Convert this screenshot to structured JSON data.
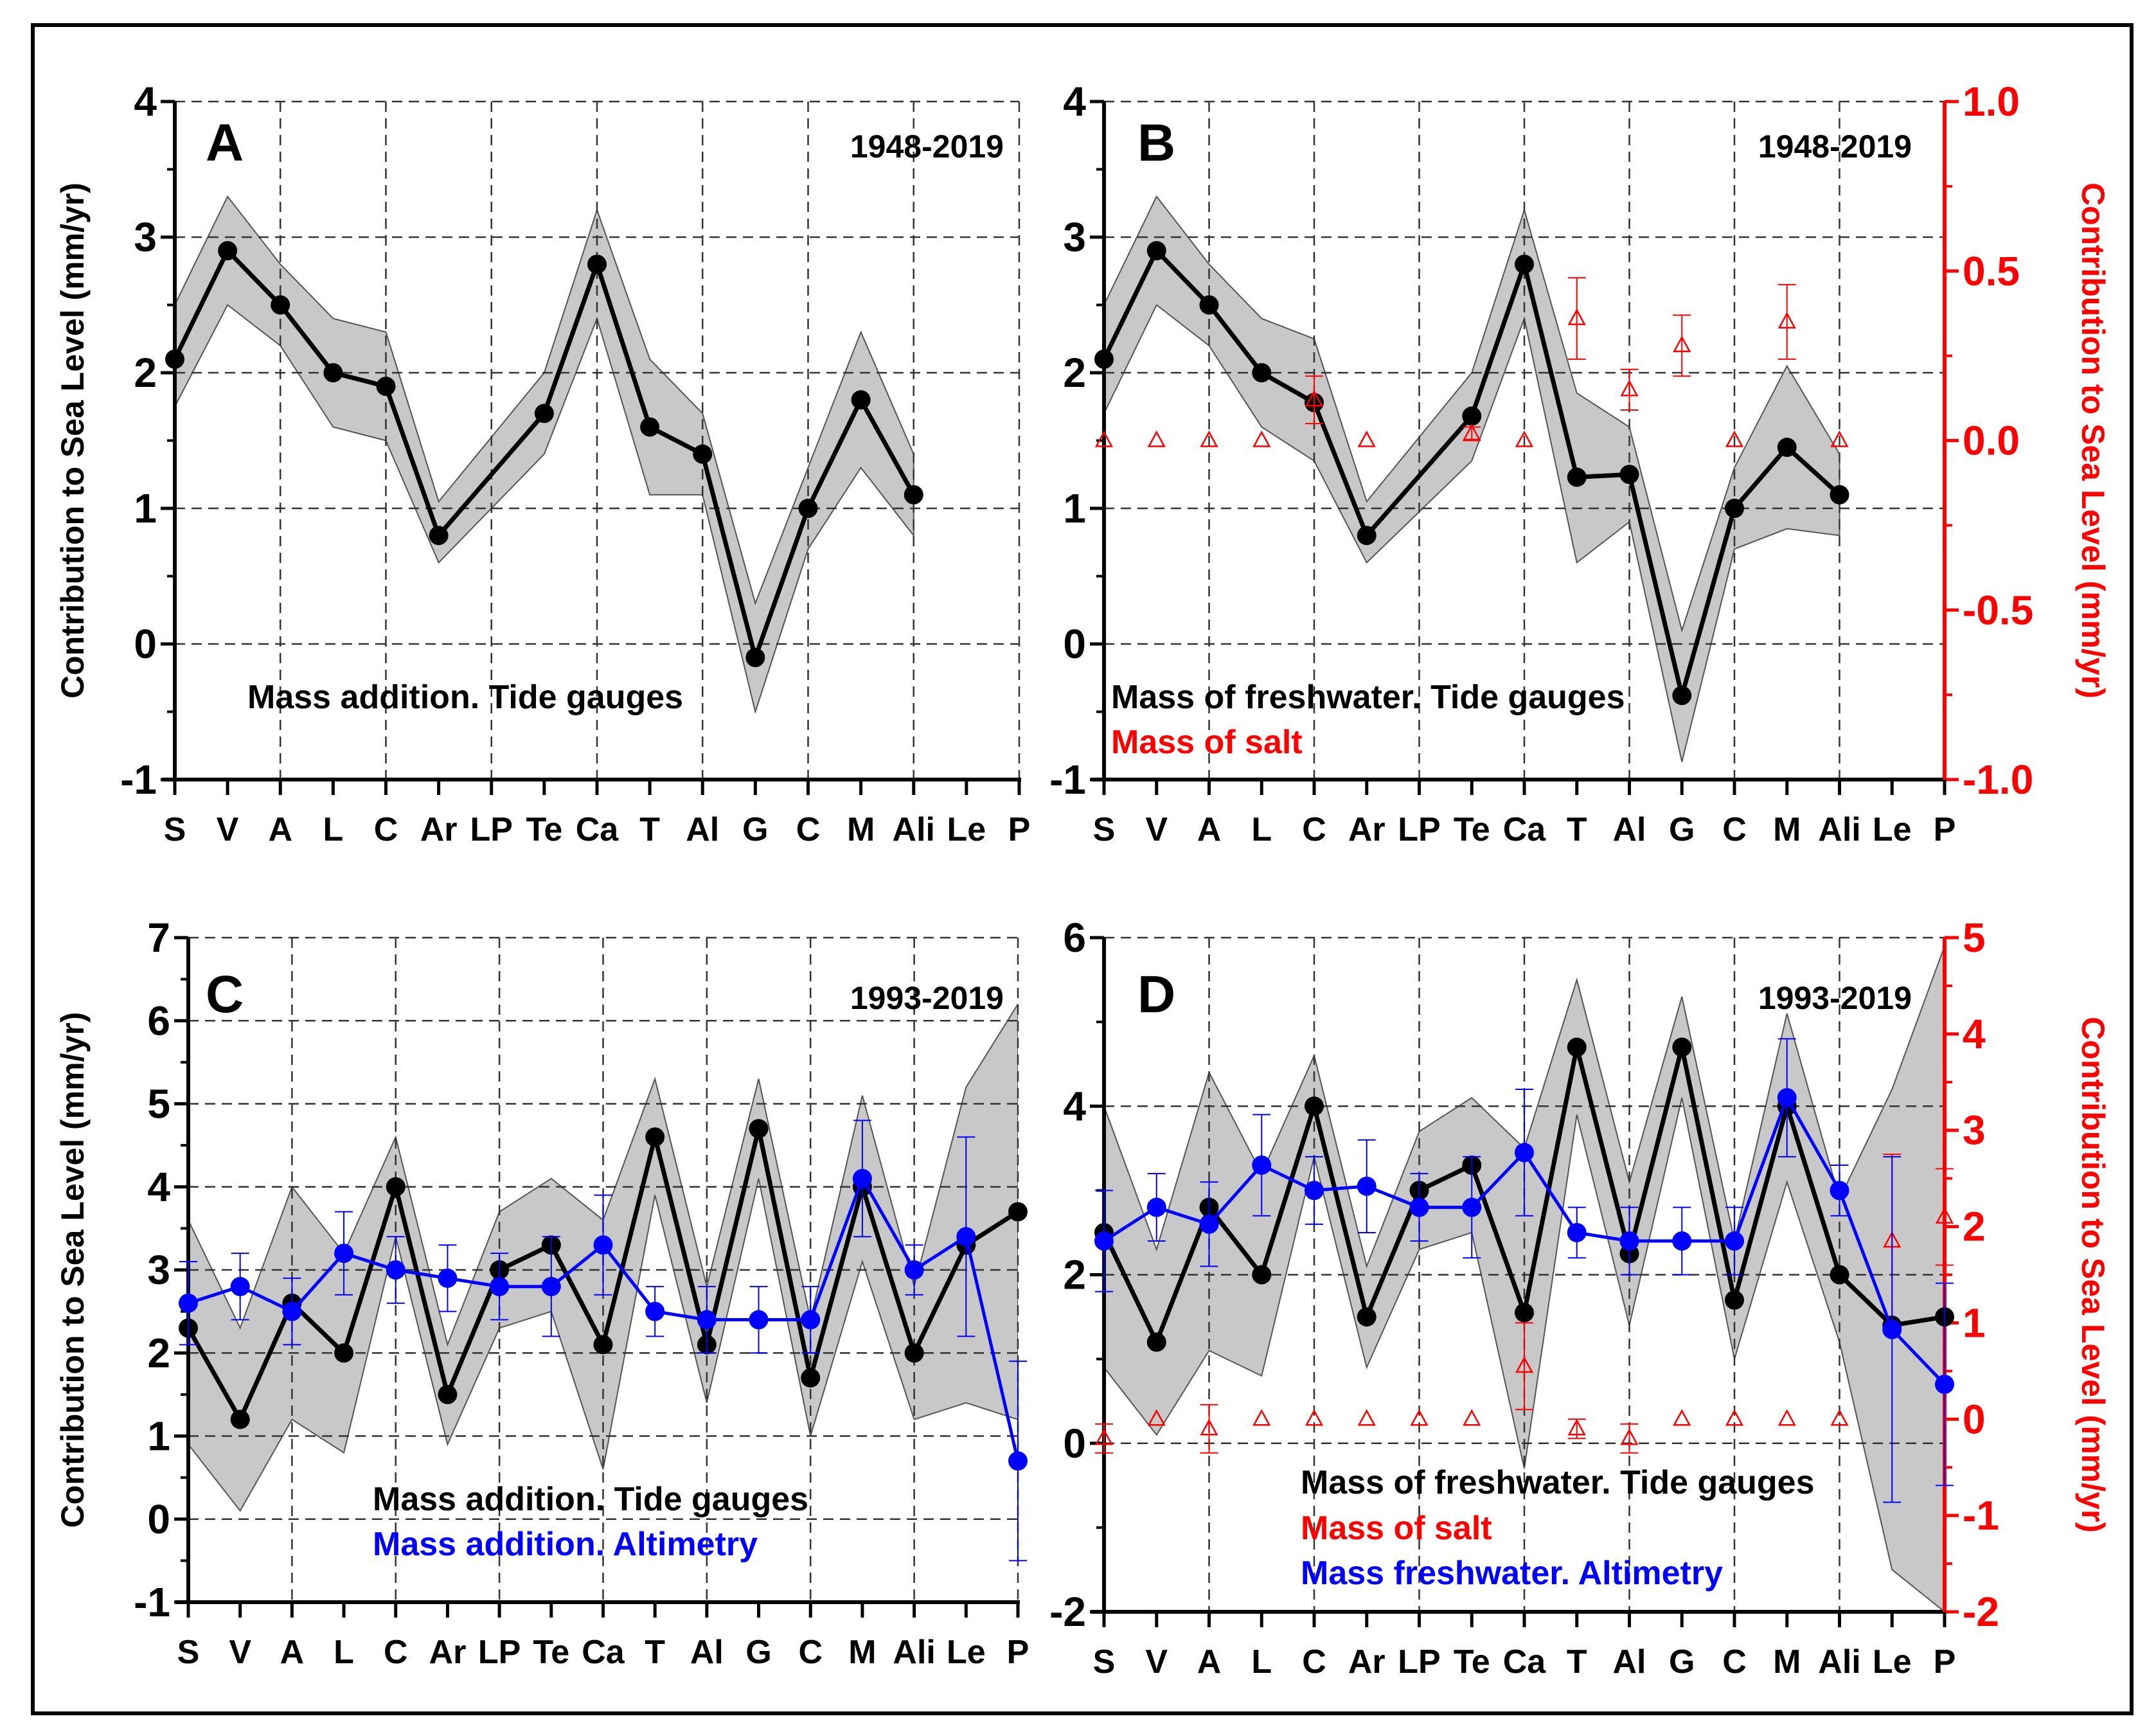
{
  "chart_data": [
    {
      "type": "line",
      "panel": "A",
      "period": "1948-2019",
      "ylabel": "Contribution to Sea Level (mm/yr)",
      "ylim": [
        -1,
        4
      ],
      "yticks": [
        "-1",
        "0",
        "1",
        "2",
        "3",
        "4"
      ],
      "categories": [
        "S",
        "V",
        "A",
        "L",
        "C",
        "Ar",
        "LP",
        "Te",
        "Ca",
        "T",
        "Al",
        "G",
        "C",
        "M",
        "Ali",
        "Le",
        "P"
      ],
      "series": [
        {
          "name": "Mass addition. Tide gauges",
          "color": "#000000",
          "style": "line-band",
          "values": [
            2.1,
            2.9,
            2.5,
            2.0,
            1.9,
            0.8,
            null,
            1.7,
            2.8,
            1.6,
            1.4,
            -0.1,
            1.0,
            1.8,
            1.1,
            null,
            null
          ],
          "lower": [
            1.75,
            2.5,
            2.2,
            1.6,
            1.5,
            0.6,
            null,
            1.4,
            2.4,
            1.1,
            1.1,
            -0.5,
            0.7,
            1.3,
            0.8,
            null,
            null
          ],
          "upper": [
            2.5,
            3.3,
            2.8,
            2.4,
            2.3,
            1.05,
            null,
            2.0,
            3.2,
            2.1,
            1.7,
            0.3,
            1.3,
            2.3,
            1.4,
            null,
            null
          ]
        }
      ]
    },
    {
      "type": "line",
      "panel": "B",
      "period": "1948-2019",
      "ylabel": "",
      "ylabel_right": "Contribution to Sea Level (mm/yr)",
      "ylim": [
        -1,
        4
      ],
      "yticks": [
        "-1",
        "0",
        "1",
        "2",
        "3",
        "4"
      ],
      "ylim_right": [
        -1,
        1
      ],
      "yticks_right": [
        "-1.0",
        "-0.5",
        "0.0",
        "0.5",
        "1.0"
      ],
      "categories": [
        "S",
        "V",
        "A",
        "L",
        "C",
        "Ar",
        "LP",
        "Te",
        "Ca",
        "T",
        "Al",
        "G",
        "C",
        "M",
        "Ali",
        "Le",
        "P"
      ],
      "series": [
        {
          "name": "Mass of freshwater. Tide gauges",
          "color": "#000000",
          "style": "line-band",
          "values": [
            2.1,
            2.9,
            2.5,
            2.0,
            1.78,
            0.8,
            null,
            1.68,
            2.8,
            1.23,
            1.25,
            -0.38,
            1.0,
            1.45,
            1.1,
            null,
            null
          ],
          "lower": [
            1.7,
            2.5,
            2.2,
            1.6,
            1.35,
            0.6,
            null,
            1.35,
            2.4,
            0.6,
            0.9,
            -0.87,
            0.7,
            0.85,
            0.8,
            null,
            null
          ],
          "upper": [
            2.5,
            3.3,
            2.8,
            2.4,
            2.25,
            1.05,
            null,
            2.0,
            3.2,
            1.85,
            1.6,
            0.1,
            1.3,
            2.05,
            1.4,
            null,
            null
          ]
        },
        {
          "name": "Mass of salt",
          "color": "#ff0000",
          "style": "triangle-err",
          "axis": "right",
          "values": [
            0,
            0,
            0,
            0,
            0.12,
            0,
            null,
            0.02,
            0,
            0.36,
            0.15,
            0.28,
            0,
            0.35,
            0,
            null,
            null
          ],
          "err": [
            0,
            0,
            0,
            0,
            0.07,
            0,
            null,
            0.02,
            0,
            0.12,
            0.06,
            0.09,
            0,
            0.11,
            0,
            null,
            null
          ]
        }
      ]
    },
    {
      "type": "line",
      "panel": "C",
      "period": "1993-2019",
      "ylabel": "Contribution to Sea Level (mm/yr)",
      "ylim": [
        -1,
        7
      ],
      "yticks": [
        "-1",
        "0",
        "1",
        "2",
        "3",
        "4",
        "5",
        "6",
        "7"
      ],
      "categories": [
        "S",
        "V",
        "A",
        "L",
        "C",
        "Ar",
        "LP",
        "Te",
        "Ca",
        "T",
        "Al",
        "G",
        "C",
        "M",
        "Ali",
        "Le",
        "P"
      ],
      "series": [
        {
          "name": "Mass addition. Tide gauges",
          "color": "#000000",
          "style": "line-band",
          "values": [
            2.3,
            1.2,
            2.6,
            2.0,
            4.0,
            1.5,
            3.0,
            3.3,
            2.1,
            4.6,
            2.1,
            4.7,
            1.7,
            4.0,
            2.0,
            3.3,
            3.7
          ],
          "lower": [
            0.9,
            0.1,
            1.2,
            0.8,
            3.4,
            0.9,
            2.3,
            2.5,
            0.6,
            3.9,
            1.4,
            4.1,
            1.0,
            3.1,
            1.2,
            1.4,
            1.2
          ],
          "upper": [
            3.6,
            2.3,
            4.0,
            3.2,
            4.6,
            2.1,
            3.7,
            4.1,
            3.6,
            5.3,
            2.8,
            5.3,
            2.4,
            5.1,
            2.8,
            5.2,
            6.2
          ]
        },
        {
          "name": "Mass addition. Altimetry",
          "color": "#0000ff",
          "style": "line-err",
          "values": [
            2.6,
            2.8,
            2.5,
            3.2,
            3.0,
            2.9,
            2.8,
            2.8,
            3.3,
            2.5,
            2.4,
            2.4,
            2.4,
            4.1,
            3.0,
            3.4,
            0.7
          ],
          "err": [
            0.5,
            0.4,
            0.4,
            0.5,
            0.4,
            0.4,
            0.4,
            0.6,
            0.6,
            0.3,
            0.4,
            0.4,
            0.4,
            0.7,
            0.3,
            1.2,
            1.2
          ]
        }
      ]
    },
    {
      "type": "line",
      "panel": "D",
      "period": "1993-2019",
      "ylabel": "",
      "ylabel_right": "Contribution to Sea Level (mm/yr)",
      "ylim": [
        -2,
        6
      ],
      "yticks": [
        "-2",
        "0",
        "2",
        "4",
        "6"
      ],
      "ylim_right": [
        -2,
        5
      ],
      "yticks_right": [
        "-2",
        "-1",
        "0",
        "1",
        "2",
        "3",
        "4",
        "5"
      ],
      "categories": [
        "S",
        "V",
        "A",
        "L",
        "C",
        "Ar",
        "LP",
        "Te",
        "Ca",
        "T",
        "Al",
        "G",
        "C",
        "M",
        "Ali",
        "Le",
        "P"
      ],
      "series": [
        {
          "name": "Mass of freshwater. Tide gauges",
          "color": "#000000",
          "style": "line-band",
          "values": [
            2.5,
            1.2,
            2.8,
            2.0,
            4.0,
            1.5,
            3.0,
            3.3,
            1.55,
            4.7,
            2.25,
            4.7,
            1.7,
            4.0,
            2.0,
            1.4,
            1.5
          ],
          "lower": [
            0.9,
            0.1,
            1.1,
            0.8,
            3.4,
            0.9,
            2.3,
            2.5,
            -0.3,
            3.9,
            1.4,
            4.1,
            1.0,
            3.1,
            1.2,
            -1.5,
            -2.0
          ],
          "upper": [
            4.0,
            2.3,
            4.4,
            3.2,
            4.6,
            2.1,
            3.7,
            4.1,
            3.5,
            5.5,
            3.1,
            5.3,
            2.4,
            5.1,
            2.9,
            4.2,
            5.9
          ]
        },
        {
          "name": "Mass of salt",
          "color": "#ff0000",
          "style": "triangle-err",
          "axis": "right",
          "values": [
            -0.2,
            0,
            -0.1,
            0,
            0,
            0,
            0,
            0,
            0.55,
            -0.1,
            -0.2,
            0,
            0,
            0,
            0,
            1.85,
            2.1
          ],
          "err": [
            0.15,
            0,
            0.25,
            0,
            0,
            0,
            0,
            0,
            0.45,
            0.1,
            0.15,
            0,
            0,
            0,
            0,
            0.9,
            0.5
          ]
        },
        {
          "name": "Mass freshwater. Altimetry",
          "color": "#0000ff",
          "style": "line-err",
          "values": [
            2.4,
            2.8,
            2.6,
            3.3,
            3.0,
            3.05,
            2.8,
            2.8,
            3.45,
            2.5,
            2.4,
            2.4,
            2.4,
            4.1,
            3.0,
            1.35,
            0.7
          ],
          "err": [
            0.6,
            0.4,
            0.5,
            0.6,
            0.4,
            0.55,
            0.4,
            0.6,
            0.75,
            0.3,
            0.4,
            0.4,
            0.4,
            0.7,
            0.3,
            2.05,
            1.2
          ]
        }
      ]
    }
  ]
}
